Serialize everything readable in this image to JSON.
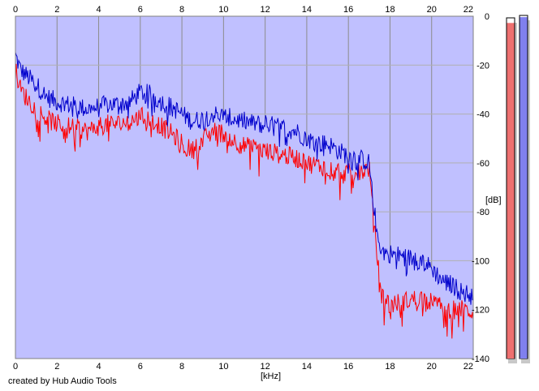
{
  "credit": "created by Hub Audio Tools",
  "colors": {
    "plot_background": "#c0c0ff",
    "series_red": "#ff0000",
    "series_blue": "#0000cc",
    "grid": "#8c8c8c",
    "meter_left": "#ee7070",
    "meter_right": "#8080ee"
  },
  "chart_data": {
    "type": "line",
    "xlabel": "[kHz]",
    "ylabel": "[dB]",
    "xlim": [
      0,
      22
    ],
    "ylim": [
      -140,
      0
    ],
    "x_ticks": [
      "0",
      "2",
      "4",
      "6",
      "8",
      "10",
      "12",
      "14",
      "16",
      "18",
      "20",
      "22"
    ],
    "y_ticks": [
      "0",
      "-20",
      "-40",
      "-60",
      "-80",
      "-100",
      "-120",
      "-140"
    ],
    "grid": true,
    "fill_under": true,
    "series": [
      {
        "color": "#0000cc",
        "x": [
          0,
          0.25,
          0.5,
          1,
          1.5,
          2,
          2.5,
          3,
          3.5,
          4,
          4.5,
          5,
          5.5,
          6,
          6.5,
          7,
          7.5,
          8,
          8.5,
          9,
          9.5,
          10,
          10.5,
          11,
          11.5,
          12,
          12.5,
          13,
          13.5,
          14,
          14.5,
          15,
          15.5,
          16,
          16.5,
          17,
          17.2,
          17.4,
          17.6,
          18,
          18.5,
          19,
          19.5,
          20,
          20.5,
          21,
          21.5,
          22
        ],
        "y": [
          -16,
          -22,
          -24,
          -28,
          -33,
          -35,
          -36,
          -37,
          -38,
          -37,
          -36,
          -36,
          -35,
          -31,
          -32,
          -35,
          -37,
          -40,
          -43,
          -42,
          -40,
          -41,
          -42,
          -43,
          -44,
          -44,
          -45,
          -46,
          -47,
          -50,
          -52,
          -52,
          -55,
          -57,
          -58,
          -60,
          -76,
          -90,
          -96,
          -97,
          -98,
          -99,
          -100,
          -103,
          -108,
          -110,
          -113,
          -114
        ]
      },
      {
        "color": "#ff0000",
        "x": [
          0,
          0.25,
          0.5,
          1,
          1.5,
          2,
          2.5,
          3,
          3.5,
          4,
          4.5,
          5,
          5.5,
          6,
          6.5,
          7,
          7.5,
          8,
          8.5,
          9,
          9.5,
          10,
          10.5,
          11,
          11.5,
          12,
          12.5,
          13,
          13.5,
          14,
          14.5,
          15,
          15.5,
          16,
          16.5,
          17,
          17.2,
          17.4,
          17.6,
          18,
          18.5,
          19,
          19.5,
          20,
          20.5,
          21,
          21.5,
          22
        ],
        "y": [
          -22,
          -30,
          -33,
          -38,
          -42,
          -44,
          -45,
          -46,
          -47,
          -45,
          -44,
          -44,
          -43,
          -41,
          -42,
          -45,
          -48,
          -52,
          -55,
          -51,
          -47,
          -48,
          -51,
          -53,
          -54,
          -55,
          -56,
          -57,
          -58,
          -60,
          -61,
          -62,
          -63,
          -64,
          -64,
          -62,
          -82,
          -100,
          -114,
          -118,
          -117,
          -116,
          -115,
          -117,
          -119,
          -120,
          -120,
          -121
        ]
      }
    ]
  },
  "meters": {
    "left_level": 0.985,
    "right_level": 0.995
  }
}
